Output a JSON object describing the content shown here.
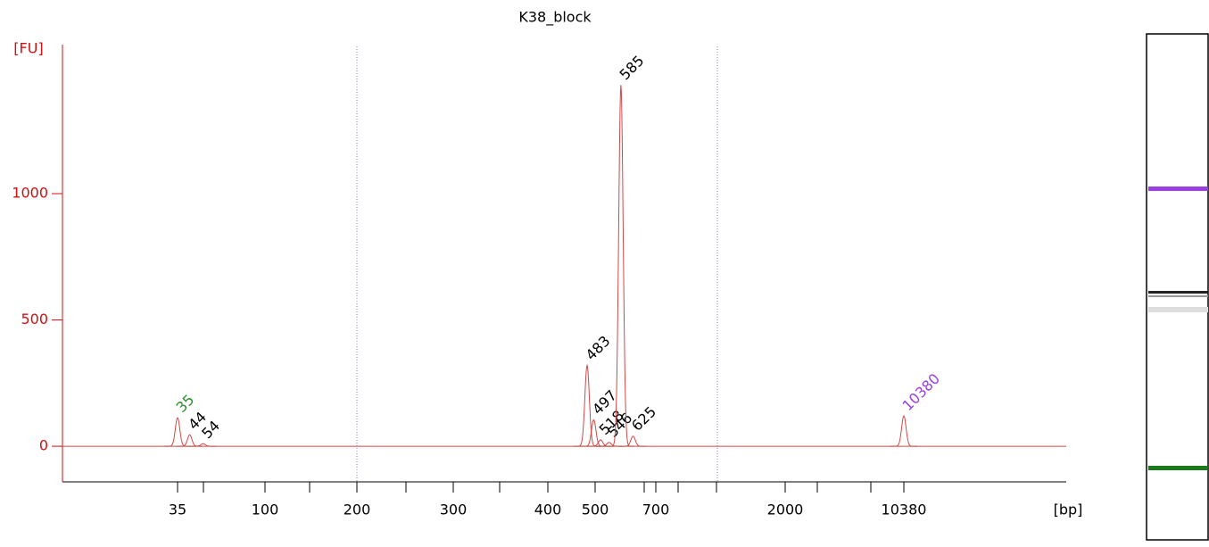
{
  "chart_data": {
    "type": "electropherogram",
    "title": "K38_block",
    "y_label": "[FU]",
    "x_label": "[bp]",
    "ylim": [
      -141,
      1590
    ],
    "yticks": [
      0,
      500,
      1000
    ],
    "xticks": [
      35,
      100,
      200,
      300,
      400,
      500,
      700,
      2000,
      10380
    ],
    "x": [
      35,
      44,
      54,
      483,
      497,
      518,
      546,
      585,
      625,
      10380
    ],
    "values": [
      113,
      45,
      10,
      320,
      105,
      25,
      15,
      1430,
      40,
      120
    ],
    "label_colors": [
      "#2e8b2e",
      "#000000",
      "#000000",
      "#000000",
      "#000000",
      "#000000",
      "#000000",
      "#000000",
      "#000000",
      "#9b3fe0"
    ],
    "color": "#d04848"
  }
}
